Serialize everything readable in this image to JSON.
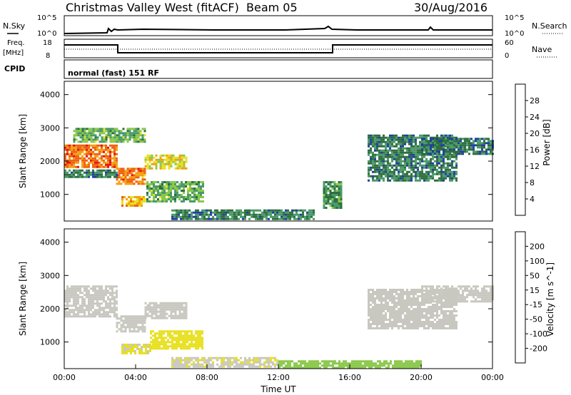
{
  "header": {
    "title": "Christmas Valley West (fitACF)",
    "beam": "Beam 05",
    "date": "30/Aug/2016"
  },
  "noise_panel": {
    "left_label": "N.Sky",
    "right_label": "N.Search",
    "left_ticks": [
      "10^5",
      "10^0"
    ],
    "right_ticks": [
      "10^5",
      "10^0"
    ]
  },
  "freq_panel": {
    "left_label_1": "Freq.",
    "left_label_2": "[MHz]",
    "right_label": "Nave",
    "left_ticks": [
      "18",
      "8"
    ],
    "right_ticks": [
      "60",
      "0"
    ]
  },
  "cpid": {
    "label": "CPID",
    "text": "normal (fast) 151 RF"
  },
  "colors": {
    "power_scale": [
      "#1a1aff",
      "#1f3f9f",
      "#2e6e3e",
      "#4a9a6a",
      "#8ac84a",
      "#e8e020",
      "#f2a010",
      "#f06010",
      "#e61010"
    ],
    "velocity_scale": [
      "#1a1aff",
      "#1f3f9f",
      "#2e6e3e",
      "#4a9a6a",
      "#8ac84a",
      "#c8c8c0",
      "#e8e020",
      "#f2a010",
      "#f06010",
      "#e61010"
    ],
    "ground_scatter": "#c8c8c0"
  },
  "chart_data": [
    {
      "type": "heatmap",
      "name": "Power",
      "ylabel": "Slant Range [km]",
      "yticks": [
        "4000",
        "3000",
        "2000",
        "1000"
      ],
      "ylim": [
        200,
        4400
      ],
      "xlim": [
        "00:00",
        "24:00"
      ],
      "colorbar": {
        "label": "Power [dB]",
        "ticks": [
          "28",
          "24",
          "20",
          "16",
          "12",
          "8",
          "4"
        ],
        "range": [
          0,
          32
        ]
      },
      "regions": [
        {
          "t0": 0.0,
          "t1": 2.9,
          "r0": 1850,
          "r1": 2500,
          "value": 26
        },
        {
          "t0": 2.9,
          "t1": 4.5,
          "r0": 1300,
          "r1": 1800,
          "value": 25
        },
        {
          "t0": 4.5,
          "t1": 6.8,
          "r0": 1800,
          "r1": 2200,
          "value": 20
        },
        {
          "t0": 0.0,
          "t1": 2.9,
          "r0": 1550,
          "r1": 1750,
          "value": 10
        },
        {
          "t0": 3.2,
          "t1": 4.6,
          "r0": 650,
          "r1": 950,
          "value": 22
        },
        {
          "t0": 4.6,
          "t1": 7.8,
          "r0": 800,
          "r1": 1400,
          "value": 14
        },
        {
          "t0": 0.5,
          "t1": 4.5,
          "r0": 2600,
          "r1": 3000,
          "value": 14
        },
        {
          "t0": 6.0,
          "t1": 14.0,
          "r0": 250,
          "r1": 550,
          "value": 10
        },
        {
          "t0": 14.5,
          "t1": 15.5,
          "r0": 600,
          "r1": 1400,
          "value": 12
        },
        {
          "t0": 17.0,
          "t1": 22.0,
          "r0": 1400,
          "r1": 2800,
          "value": 10
        },
        {
          "t0": 20.0,
          "t1": 24.0,
          "r0": 2200,
          "r1": 2700,
          "value": 9
        }
      ]
    },
    {
      "type": "heatmap",
      "name": "Velocity",
      "ylabel": "Slant Range [km]",
      "xlabel": "Time UT",
      "yticks": [
        "4000",
        "3000",
        "2000",
        "1000"
      ],
      "xticks": [
        "00:00",
        "04:00",
        "08:00",
        "12:00",
        "16:00",
        "20:00",
        "00:00"
      ],
      "ylim": [
        200,
        4400
      ],
      "xlim": [
        "00:00",
        "24:00"
      ],
      "colorbar": {
        "label": "Velocity [m s^-1]",
        "ticks": [
          "200",
          "100",
          "50",
          "15",
          "-15",
          "-50",
          "-100",
          "-200"
        ],
        "range": [
          -250,
          250
        ]
      },
      "regions": [
        {
          "t0": 0.0,
          "t1": 2.9,
          "r0": 1750,
          "r1": 2700,
          "value": 0
        },
        {
          "t0": 2.9,
          "t1": 4.5,
          "r0": 1300,
          "r1": 1800,
          "value": 0
        },
        {
          "t0": 4.5,
          "t1": 6.8,
          "r0": 1700,
          "r1": 2200,
          "value": 0
        },
        {
          "t0": 3.2,
          "t1": 4.8,
          "r0": 650,
          "r1": 950,
          "value": -60
        },
        {
          "t0": 4.8,
          "t1": 7.8,
          "r0": 800,
          "r1": 1350,
          "value": -70
        },
        {
          "t0": 6.0,
          "t1": 12.0,
          "r0": 250,
          "r1": 550,
          "value": -40
        },
        {
          "t0": 12.0,
          "t1": 20.0,
          "r0": 250,
          "r1": 450,
          "value": 30
        },
        {
          "t0": 17.0,
          "t1": 22.0,
          "r0": 1400,
          "r1": 2600,
          "value": 0
        },
        {
          "t0": 20.0,
          "t1": 24.0,
          "r0": 2200,
          "r1": 2700,
          "value": 0
        }
      ]
    }
  ]
}
